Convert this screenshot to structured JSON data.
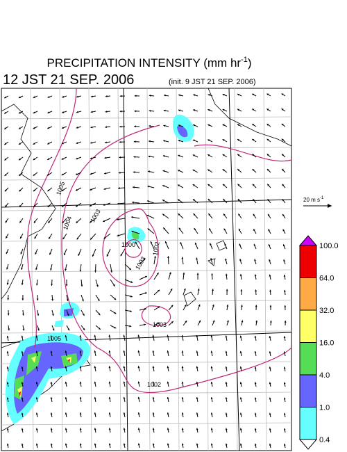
{
  "title": {
    "main": "PRECIPITATION INTENSITY (mm hr",
    "sup": "-1",
    "close": ")"
  },
  "valid_time": "12 JST 21 SEP. 2006",
  "init_time": "(init. 9 JST 21 SEP. 2006)",
  "wind_scale": {
    "main": "20 m s",
    "sup": "-1"
  },
  "isobar_labels": [
    "1005",
    "1004",
    "1003",
    "1000",
    "1002",
    "1003",
    "1003",
    "1005",
    "1002"
  ],
  "colorbar": {
    "levels": [
      {
        "value": 0.4,
        "label": "0.4"
      },
      {
        "value": 1,
        "label": "1.0"
      },
      {
        "value": 4,
        "label": "4.0"
      },
      {
        "value": 16,
        "label": "16.0"
      },
      {
        "value": 32,
        "label": "32.0"
      },
      {
        "value": 64,
        "label": "64.0"
      },
      {
        "value": 100,
        "label": "100.0"
      }
    ],
    "colors": [
      "#66ffff",
      "#6666ff",
      "#55dd55",
      "#ffff66",
      "#ffaa44",
      "#ee0000"
    ],
    "under_color": "#ffffff",
    "over_color": "#cc00ff"
  }
}
